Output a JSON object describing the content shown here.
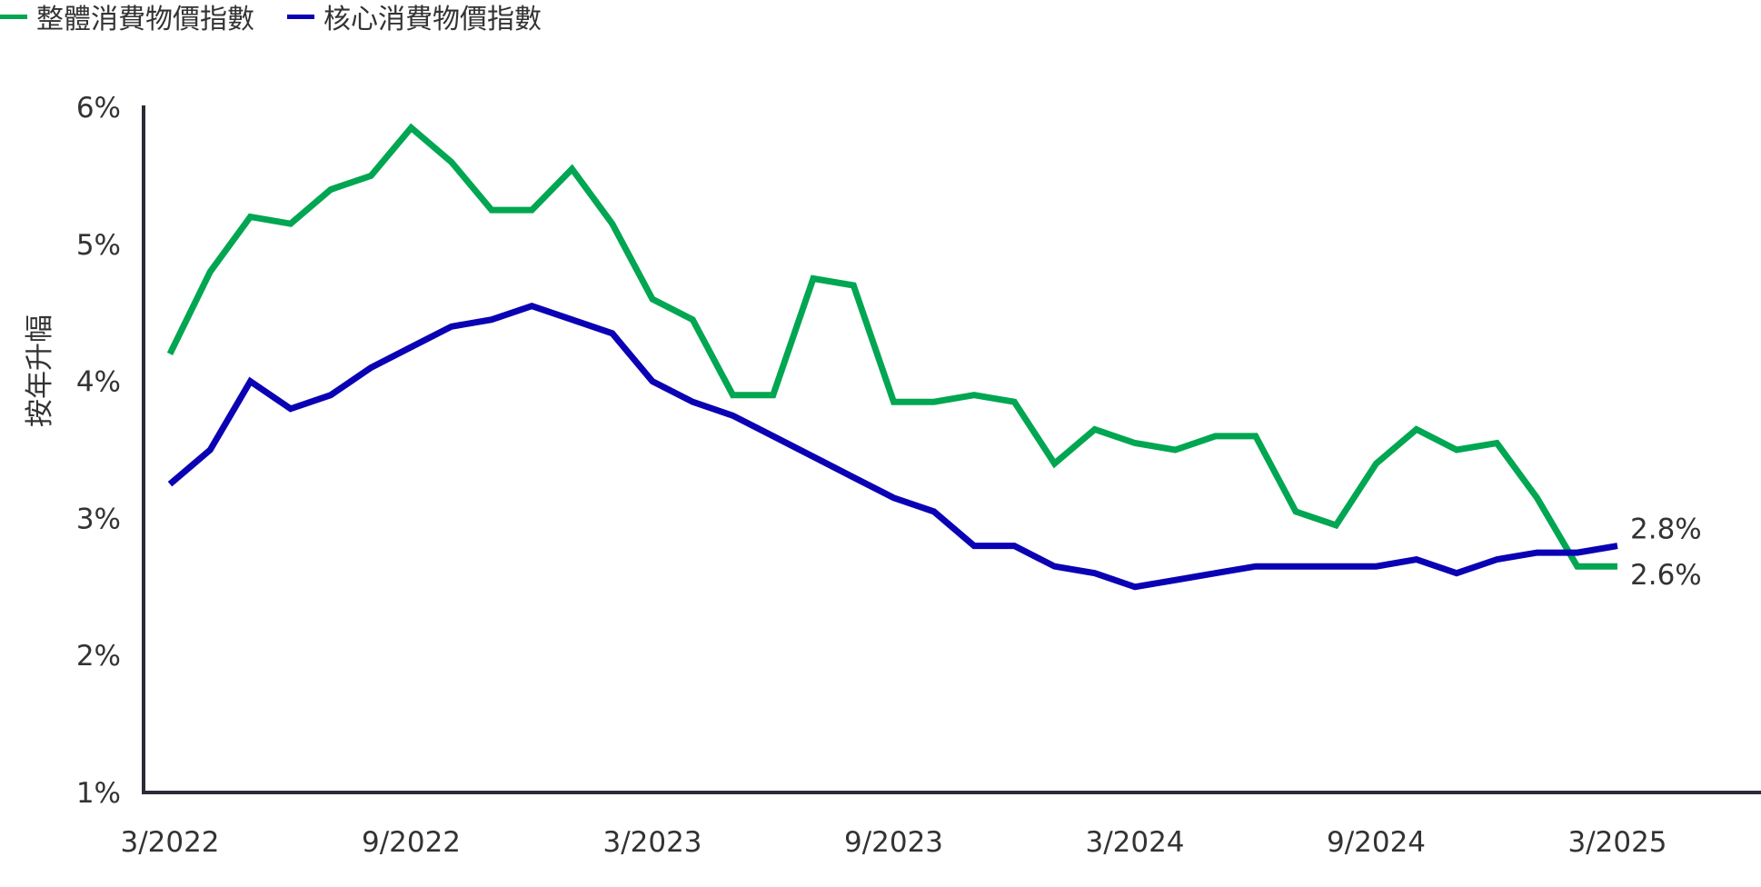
{
  "chart_data": {
    "type": "line",
    "title": "",
    "xlabel": "",
    "ylabel": "按年升幅",
    "ylim": [
      1,
      6
    ],
    "yticks": [
      "1%",
      "2%",
      "3%",
      "4%",
      "5%",
      "6%"
    ],
    "xticks": [
      "3/2022",
      "9/2022",
      "3/2023",
      "9/2023",
      "3/2024",
      "9/2024",
      "3/2025"
    ],
    "grid": false,
    "legend": "top-left",
    "x": [
      "3/2022",
      "4/2022",
      "5/2022",
      "6/2022",
      "7/2022",
      "8/2022",
      "9/2022",
      "10/2022",
      "11/2022",
      "12/2022",
      "1/2023",
      "2/2023",
      "3/2023",
      "4/2023",
      "5/2023",
      "6/2023",
      "7/2023",
      "8/2023",
      "9/2023",
      "10/2023",
      "11/2023",
      "12/2023",
      "1/2024",
      "2/2024",
      "3/2024",
      "4/2024",
      "5/2024",
      "6/2024",
      "7/2024",
      "8/2024",
      "9/2024",
      "10/2024",
      "11/2024",
      "12/2024",
      "1/2025",
      "2/2025",
      "3/2025"
    ],
    "series": [
      {
        "name": "整體消費物價指數",
        "color": "#00A651",
        "values": [
          4.2,
          4.8,
          5.2,
          5.15,
          5.4,
          5.5,
          5.85,
          5.6,
          5.25,
          5.25,
          5.55,
          5.15,
          4.6,
          4.45,
          3.9,
          3.9,
          4.75,
          4.7,
          3.85,
          3.85,
          3.9,
          3.85,
          3.4,
          3.65,
          3.55,
          3.5,
          3.6,
          3.6,
          3.05,
          2.95,
          3.4,
          3.65,
          3.5,
          3.55,
          3.15,
          2.65,
          2.65
        ],
        "end_label": "2.6%"
      },
      {
        "name": "核心消費物價指數",
        "color": "#0A00B4",
        "values": [
          3.25,
          3.5,
          4.0,
          3.8,
          3.9,
          4.1,
          4.25,
          4.4,
          4.45,
          4.55,
          4.45,
          4.35,
          4.0,
          3.85,
          3.75,
          3.6,
          3.45,
          3.3,
          3.15,
          3.05,
          2.8,
          2.8,
          2.65,
          2.6,
          2.5,
          2.55,
          2.6,
          2.65,
          2.65,
          2.65,
          2.65,
          2.7,
          2.6,
          2.7,
          2.75,
          2.75,
          2.8
        ],
        "end_label": "2.8%"
      }
    ]
  }
}
